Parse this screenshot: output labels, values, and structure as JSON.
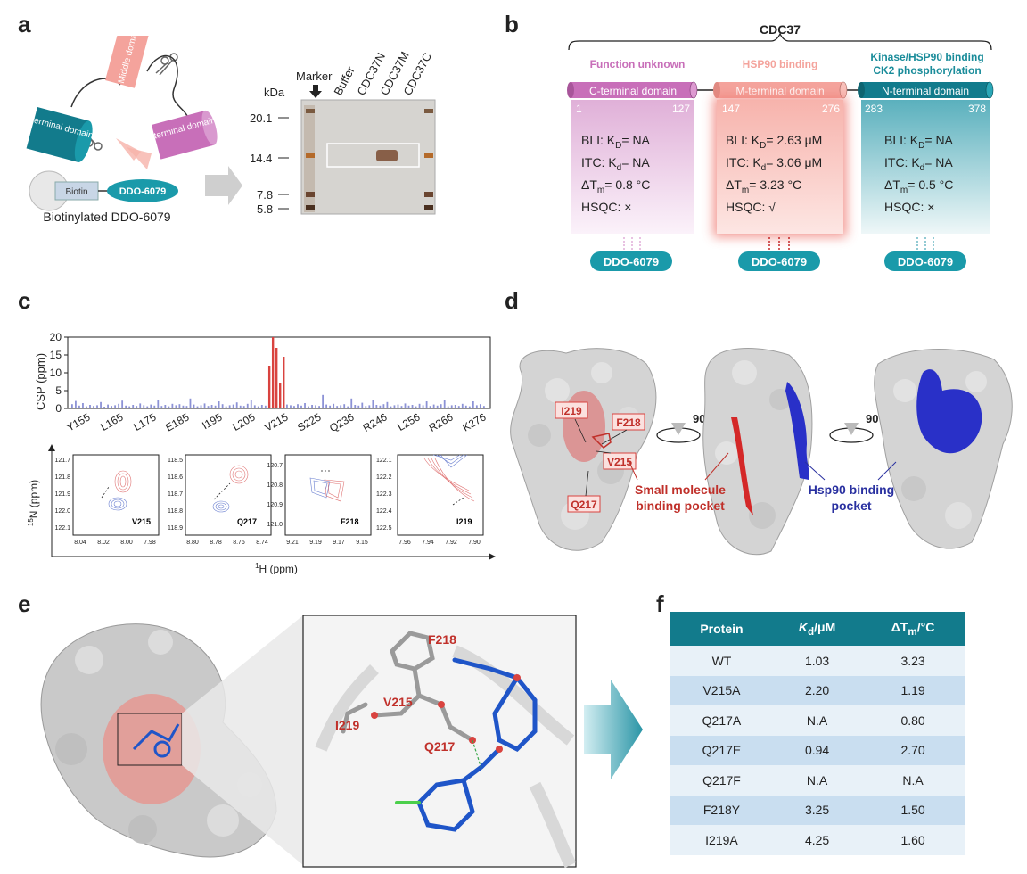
{
  "panels": {
    "a": "a",
    "b": "b",
    "c": "c",
    "d": "d",
    "e": "e",
    "f": "f"
  },
  "panel_a": {
    "domains": {
      "n": "N terminal domain",
      "m": "Middle domain",
      "c": "C terminal domain"
    },
    "biotin": "Biotin",
    "compound": "DDO-6079",
    "caption": "Biotinylated DDO-6079",
    "gel": {
      "lanes": [
        "Marker",
        "Buffer",
        "CDC37N",
        "CDC37M",
        "CDC37C"
      ],
      "unit": "kDa",
      "markers": [
        "20.1",
        "14.4",
        "7.8",
        "5.8"
      ]
    }
  },
  "panel_b": {
    "title": "CDC37",
    "domains": [
      {
        "header": "Function unknown",
        "name": "C-terminal domain",
        "start": "1",
        "end": "127",
        "bli": "BLI: K",
        "bli_sub": "D",
        "bli_val": "= NA",
        "itc": "ITC: K",
        "itc_sub": "d",
        "itc_val": "= NA",
        "tm": "ΔT",
        "tm_sub": "m",
        "tm_val": "= 0.8 °C",
        "hsqc": "HSQC: ×",
        "compound": "DDO-6079",
        "color": "#c86fb9"
      },
      {
        "header": "HSP90 binding",
        "name": "M-terminal  domain",
        "start": "147",
        "end": "276",
        "bli": "BLI: K",
        "bli_sub": "D",
        "bli_val": "= 2.63 μM",
        "itc": "ITC: K",
        "itc_sub": "d",
        "itc_val": "= 3.06 μM",
        "tm": "ΔT",
        "tm_sub": "m",
        "tm_val": "= 3.23 °C",
        "hsqc": "HSQC: √",
        "compound": "DDO-6079",
        "color": "#f4a39c"
      },
      {
        "header": "Kinase/HSP90 binding",
        "header2": "CK2 phosphorylation",
        "name": "N-terminal domain",
        "start": "283",
        "end": "378",
        "bli": "BLI: K",
        "bli_sub": "D",
        "bli_val": "= NA",
        "itc": "ITC: K",
        "itc_sub": "d",
        "itc_val": "= NA",
        "tm": "ΔT",
        "tm_sub": "m",
        "tm_val": "= 0.5 °C",
        "hsqc": "HSQC: ×",
        "compound": "DDO-6079",
        "color": "#1a8c9a"
      }
    ]
  },
  "chart_data": {
    "type": "bar",
    "ylabel": "CSP (ppm)",
    "ylim": [
      0,
      20
    ],
    "yticks": [
      "0",
      "5",
      "10",
      "15",
      "20"
    ],
    "tick_labels": [
      "Y155",
      "L165",
      "L175",
      "E185",
      "I195",
      "L205",
      "V215",
      "S225",
      "Q236",
      "R246",
      "L256",
      "R266",
      "K276"
    ],
    "values": [
      1.2,
      2.1,
      0.8,
      1.5,
      0.6,
      1.0,
      0.7,
      0.9,
      1.8,
      0.5,
      1.1,
      0.7,
      0.9,
      1.3,
      2.2,
      0.8,
      0.6,
      1.0,
      0.7,
      1.4,
      0.9,
      0.6,
      1.1,
      0.8,
      2.5,
      0.7,
      1.0,
      0.6,
      1.3,
      0.9,
      1.2,
      0.8,
      0.7,
      2.8,
      1.1,
      0.6,
      0.9,
      1.4,
      0.7,
      1.0,
      0.8,
      2.0,
      1.2,
      0.6,
      0.9,
      1.1,
      1.7,
      0.8,
      0.7,
      1.3,
      2.4,
      0.9,
      0.6,
      1.0,
      0.8,
      12,
      20,
      17,
      7,
      14.5,
      1.1,
      0.9,
      0.7,
      1.2,
      0.8,
      1.5,
      0.6,
      1.0,
      0.9,
      0.7,
      3.8,
      1.1,
      0.8,
      1.3,
      0.7,
      0.9,
      1.2,
      0.6,
      2.8,
      1.0,
      0.8,
      1.6,
      0.7,
      0.9,
      2.3,
      1.0,
      0.8,
      1.2,
      1.8,
      0.6,
      0.9,
      1.1,
      0.7,
      1.4,
      0.8,
      1.0,
      0.6,
      1.3,
      0.9,
      2.0,
      0.7,
      1.1,
      0.8,
      1.2,
      2.4,
      0.6,
      0.9,
      1.0,
      0.7,
      1.3,
      0.8,
      0.6,
      2.0,
      0.9,
      1.2,
      0.7
    ],
    "highlight_indices": [
      55,
      56,
      57,
      58,
      59
    ],
    "colors": {
      "normal": "#8c92d6",
      "highlight": "#d9433f"
    }
  },
  "panel_c_spectra": {
    "ylabel": "N (ppm)",
    "ylabel_sup": "15",
    "xlabel": "H (ppm)",
    "xlabel_sup": "1",
    "plots": [
      {
        "label": "V215",
        "yticks": [
          "121.7",
          "121.8",
          "121.9",
          "122.0",
          "122.1"
        ],
        "xticks": [
          "8.04",
          "8.02",
          "8.00",
          "7.98"
        ]
      },
      {
        "label": "Q217",
        "yticks": [
          "118.5",
          "118.6",
          "118.7",
          "118.8",
          "118.9"
        ],
        "xticks": [
          "8.80",
          "8.78",
          "8.76",
          "8.74"
        ]
      },
      {
        "label": "F218",
        "yticks": [
          "120.7",
          "120.8",
          "120.9",
          "121.0"
        ],
        "xticks": [
          "9.21",
          "9.19",
          "9.17",
          "9.15"
        ]
      },
      {
        "label": "I219",
        "yticks": [
          "122.1",
          "122.2",
          "122.3",
          "122.4",
          "122.5"
        ],
        "xticks": [
          "7.96",
          "7.94",
          "7.92",
          "7.90"
        ]
      }
    ]
  },
  "panel_d": {
    "residues": [
      "I219",
      "F218",
      "V215",
      "Q217"
    ],
    "rotation": "90°",
    "small_molecule_pocket": [
      "Small molecule",
      "binding pocket"
    ],
    "hsp90_pocket": [
      "Hsp90 binding",
      "pocket"
    ]
  },
  "panel_e": {
    "residues": [
      "F218",
      "V215",
      "I219",
      "Q217"
    ]
  },
  "panel_f": {
    "headers": [
      "Protein",
      "K",
      "/μM",
      "ΔT",
      "/°C"
    ],
    "header_subs": [
      "d",
      "m"
    ],
    "rows": [
      [
        "WT",
        "1.03",
        "3.23"
      ],
      [
        "V215A",
        "2.20",
        "1.19"
      ],
      [
        "Q217A",
        "N.A",
        "0.80"
      ],
      [
        "Q217E",
        "0.94",
        "2.70"
      ],
      [
        "Q217F",
        "N.A",
        "N.A"
      ],
      [
        "F218Y",
        "3.25",
        "1.50"
      ],
      [
        "I219A",
        "4.25",
        "1.60"
      ]
    ]
  }
}
